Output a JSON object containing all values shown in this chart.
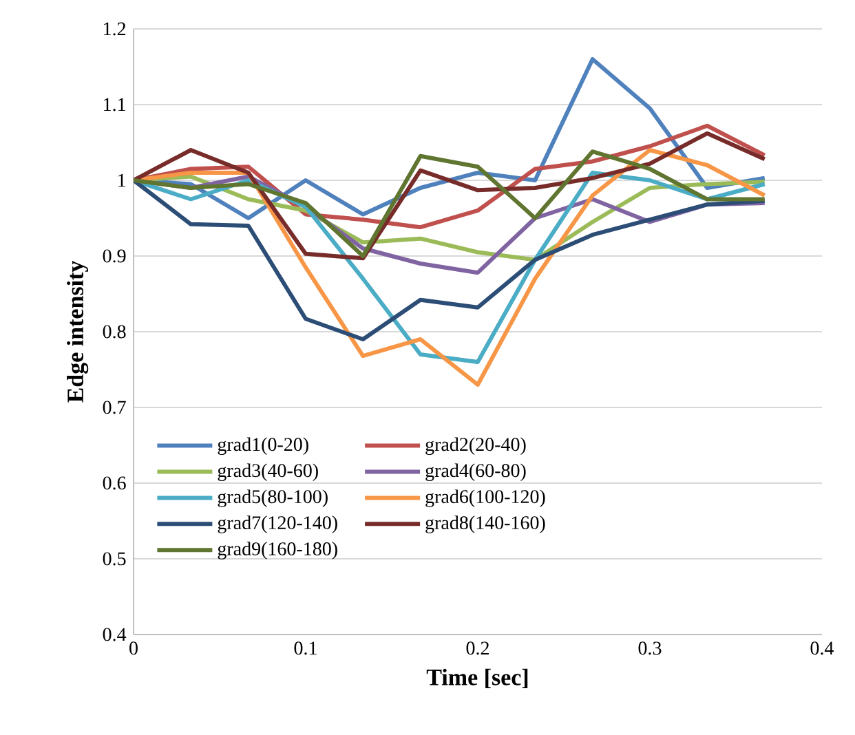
{
  "chart_data": {
    "type": "line",
    "xlabel": "Time [sec]",
    "ylabel": "Edge intensity",
    "x": [
      0,
      0.0333,
      0.0667,
      0.1,
      0.1333,
      0.1667,
      0.2,
      0.2333,
      0.2667,
      0.3,
      0.3333,
      0.3667
    ],
    "xlim": [
      0,
      0.4
    ],
    "xticks": [
      0,
      0.1,
      0.2,
      0.3,
      0.4
    ],
    "ylim": [
      0.4,
      1.2
    ],
    "yticks": [
      0.4,
      0.5,
      0.6,
      0.7,
      0.8,
      0.9,
      1,
      1.1,
      1.2
    ],
    "grid": "y",
    "legend": "bottom",
    "marker": "none",
    "line_style": "solid",
    "series": [
      {
        "name": "grad1(0-20)",
        "color": "#4f81bd",
        "values": [
          1.0,
          0.995,
          0.95,
          1.0,
          0.955,
          0.99,
          1.01,
          1.0,
          1.16,
          1.095,
          0.99,
          1.003
        ]
      },
      {
        "name": "grad2(20-40)",
        "color": "#c0504d",
        "values": [
          1.0,
          1.015,
          1.018,
          0.955,
          0.948,
          0.938,
          0.96,
          1.015,
          1.025,
          1.045,
          1.072,
          1.033
        ]
      },
      {
        "name": "grad3(40-60)",
        "color": "#9bbb59",
        "values": [
          1.0,
          1.005,
          0.975,
          0.96,
          0.918,
          0.923,
          0.905,
          0.895,
          0.945,
          0.99,
          0.995,
          0.998
        ]
      },
      {
        "name": "grad4(60-80)",
        "color": "#8064a2",
        "values": [
          1.0,
          0.99,
          1.005,
          0.965,
          0.91,
          0.89,
          0.878,
          0.95,
          0.975,
          0.945,
          0.968,
          0.97
        ]
      },
      {
        "name": "grad5(80-100)",
        "color": "#4bacc6",
        "values": [
          1.0,
          0.975,
          1.0,
          0.965,
          0.87,
          0.77,
          0.76,
          0.895,
          1.01,
          1.0,
          0.975,
          0.995
        ]
      },
      {
        "name": "grad6(100-120)",
        "color": "#f79646",
        "values": [
          1.0,
          1.01,
          1.01,
          0.885,
          0.768,
          0.79,
          0.73,
          0.87,
          0.98,
          1.04,
          1.02,
          0.98
        ]
      },
      {
        "name": "grad7(120-140)",
        "color": "#2c4d75",
        "values": [
          1.0,
          0.942,
          0.94,
          0.817,
          0.79,
          0.842,
          0.832,
          0.895,
          0.928,
          0.948,
          0.968,
          0.973
        ]
      },
      {
        "name": "grad8(140-160)",
        "color": "#772c2a",
        "values": [
          1.0,
          1.04,
          1.01,
          0.903,
          0.897,
          1.013,
          0.987,
          0.99,
          1.003,
          1.022,
          1.062,
          1.028
        ]
      },
      {
        "name": "grad9(160-180)",
        "color": "#5f7530",
        "values": [
          1.0,
          0.99,
          0.995,
          0.97,
          0.9,
          1.032,
          1.018,
          0.95,
          1.038,
          1.015,
          0.975,
          0.975
        ]
      }
    ]
  }
}
